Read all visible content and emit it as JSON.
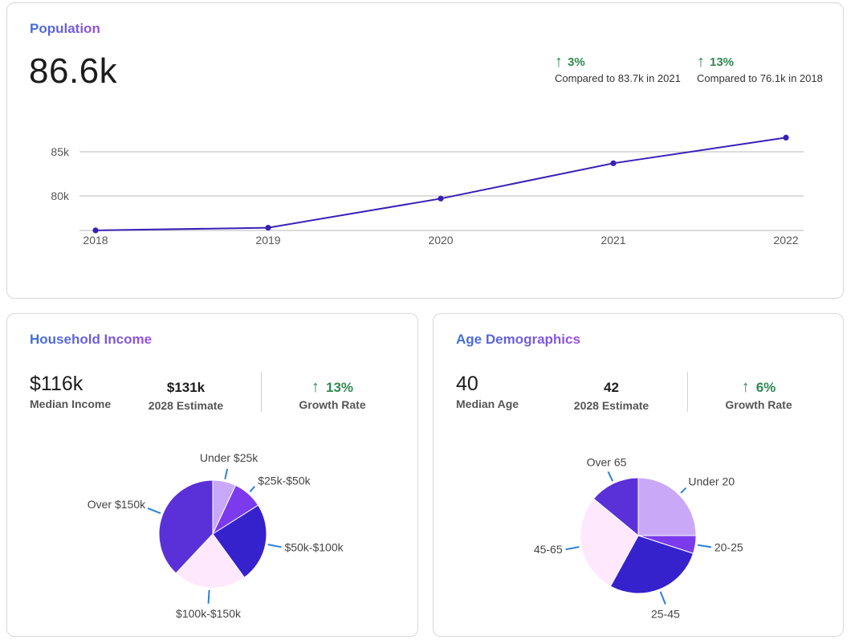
{
  "population": {
    "title": "Population",
    "value": "86.6k",
    "deltas": [
      {
        "pct": "3%",
        "compare": "Compared to 83.7k in 2021"
      },
      {
        "pct": "13%",
        "compare": "Compared to 76.1k in 2018"
      }
    ]
  },
  "income": {
    "title": "Household Income",
    "median_value": "$116k",
    "median_label": "Median Income",
    "estimate_value": "$131k",
    "estimate_label": "2028 Estimate",
    "growth_value": "13%",
    "growth_label": "Growth Rate"
  },
  "age": {
    "title": "Age Demographics",
    "median_value": "40",
    "median_label": "Median Age",
    "estimate_value": "42",
    "estimate_label": "2028 Estimate",
    "growth_value": "6%",
    "growth_label": "Growth Rate"
  },
  "colors": {
    "line": "#3a20b8",
    "grid": "#c8c8c8",
    "leader": "#2f7fd9",
    "light_purple": "#c9a9f7",
    "violet": "#7c3aed",
    "indigo": "#3622cc",
    "pale_pink": "#fde8fd",
    "royal": "#5a30d8",
    "up_green": "#2e8a4f"
  },
  "icons": {
    "up": "arrow-up-icon"
  },
  "chart_data": [
    {
      "type": "line",
      "x": [
        "2018",
        "2019",
        "2020",
        "2021",
        "2022"
      ],
      "series": [
        {
          "values": [
            76.1,
            76.4,
            79.7,
            83.7,
            86.6
          ]
        }
      ],
      "ytick_values": [
        80,
        85
      ],
      "ytick_labels": [
        "80k",
        "85k"
      ],
      "ylim": [
        76,
        87.5
      ],
      "grid": true,
      "title": "",
      "xlabel": "",
      "ylabel": ""
    },
    {
      "type": "pie",
      "categories": [
        "Under $25k",
        "$25k-$50k",
        "$50k-$100k",
        "$100k-$150k",
        "Over $150k"
      ],
      "values": [
        7,
        9,
        24,
        22,
        38
      ],
      "colors": [
        "#c9a9f7",
        "#7c3aed",
        "#3622cc",
        "#fde8fd",
        "#5a30d8"
      ]
    },
    {
      "type": "pie",
      "categories": [
        "Under 20",
        "20-25",
        "25-45",
        "45-65",
        "Over 65"
      ],
      "values": [
        25,
        5,
        28,
        28,
        14
      ],
      "colors": [
        "#c9a9f7",
        "#7c3aed",
        "#3622cc",
        "#fde8fd",
        "#5a30d8"
      ]
    }
  ]
}
